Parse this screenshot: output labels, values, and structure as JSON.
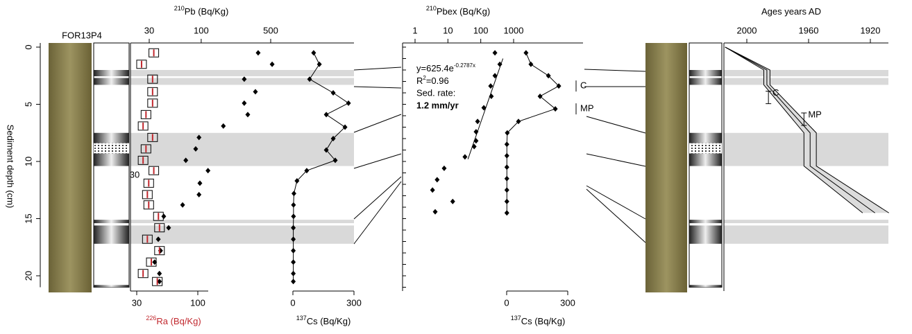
{
  "core_name": "FOR13P4",
  "depth_axis": {
    "label": "Sediment depth (cm)",
    "ylim": [
      0,
      21
    ],
    "yticks": [
      0,
      5,
      10,
      15,
      20
    ]
  },
  "event_layers": [
    [
      2,
      2.55
    ],
    [
      2.7,
      3.3
    ],
    [
      7.5,
      10.4
    ],
    [
      15.1,
      15.4
    ],
    [
      15.6,
      17.2
    ]
  ],
  "chart_data": [
    {
      "type": "scatter",
      "xscale": "log",
      "x_label_sup": "210",
      "x_label": "Pb (Bq/Kg)",
      "xlim": [
        30,
        500
      ],
      "xticks": [
        30,
        100,
        500
      ],
      "x2_label_sup": "226",
      "x2_label": "Ra (Bq/Kg)",
      "x2lim": [
        30,
        100
      ],
      "x2ticks": [
        30,
        100
      ],
      "annotation": "30",
      "series": [
        {
          "color": "#000000",
          "depths": [
            0.5,
            1.5,
            2.8,
            3.9,
            4.9,
            5.9,
            6.9,
            7.9,
            8.9,
            9.9,
            10.8,
            11.9,
            12.9,
            13.8,
            14.8,
            15.8,
            16.8,
            17.8,
            18.8,
            19.8,
            20.5
          ],
          "values": [
            374,
            517,
            271,
            351,
            271,
            294,
            167,
            95,
            88,
            70,
            117,
            97,
            95,
            65,
            42,
            47,
            37,
            39,
            34,
            38,
            38
          ]
        },
        {
          "axis": "x2",
          "color": "#c1272d",
          "depths": [
            0.5,
            1.5,
            2.8,
            3.9,
            4.9,
            5.9,
            6.9,
            7.9,
            8.9,
            9.9,
            10.8,
            11.9,
            12.9,
            13.8,
            14.8,
            15.8,
            16.8,
            17.8,
            18.8,
            19.8,
            20.5
          ],
          "values": [
            42,
            33,
            41,
            41,
            41,
            36,
            34,
            41,
            36,
            34,
            42,
            38,
            37,
            38,
            46,
            47,
            37,
            47,
            40,
            34,
            45
          ]
        }
      ]
    },
    {
      "type": "line",
      "x_label_sup": "137",
      "x_label": "Cs (Bq/Kg)",
      "xlim": [
        0,
        300
      ],
      "xticks": [
        0,
        300
      ],
      "color": "#000000",
      "depths": [
        0.5,
        1.5,
        2.8,
        4,
        4.9,
        5.9,
        7,
        8,
        9,
        9.9,
        10.8,
        11.7,
        12.8,
        13.8,
        14.8,
        15.8,
        16.8,
        17.8,
        18.8,
        19.8,
        20.5
      ],
      "values": [
        102,
        130,
        82,
        198,
        273,
        164,
        256,
        198,
        164,
        208,
        68,
        20,
        5,
        3,
        3,
        2,
        2,
        2,
        2,
        2,
        2
      ]
    },
    {
      "type": "scatter",
      "xscale": "log",
      "x_label_sup": "210",
      "x_label": "Pbex (Bq/Kg)",
      "xlim": [
        1,
        1000
      ],
      "xticks": [
        1,
        10,
        100,
        1000
      ],
      "fit": {
        "a": 625.4,
        "b": -0.2787,
        "depth_range": [
          1,
          9.8
        ]
      },
      "equation": "y=625.4e",
      "equation_exp": "-0.2787x",
      "r2": [
        "R",
        "2",
        "=0.96"
      ],
      "rate_label": "Sed. rate:",
      "rate": "1.2 mm/yr",
      "series": [
        {
          "color": "#000000",
          "depths": [
            0.5,
            1.5,
            2.5,
            3.4,
            4.3,
            5.3,
            6.5,
            7.4,
            8.2,
            8.7,
            9.6,
            10.6,
            11.6,
            12.5,
            13.5,
            14.4
          ],
          "values": [
            270,
            380,
            270,
            200,
            210,
            124,
            80,
            72,
            72,
            63,
            33,
            7.7,
            4.7,
            3.4,
            14,
            4.1
          ]
        }
      ]
    },
    {
      "type": "line",
      "x_label_sup": "137",
      "x_label": "Cs (Bq/Kg)",
      "xlim": [
        0,
        300
      ],
      "xticks": [
        0,
        300
      ],
      "color": "#000000",
      "depths": [
        0.5,
        1.5,
        2.5,
        3.4,
        4.3,
        5.4,
        6.5,
        7.5,
        8.5,
        9.5,
        10.5,
        11.5,
        12.5,
        13.5,
        14.5
      ],
      "values": [
        95,
        119,
        205,
        256,
        164,
        239,
        58,
        3,
        1,
        1,
        1,
        1,
        1,
        1,
        1
      ],
      "markers": [
        {
          "label": "C",
          "depth": 3.4
        },
        {
          "label": "MP",
          "depth": 5.4
        }
      ]
    },
    {
      "type": "age_model",
      "x_label": "Ages years AD",
      "xlim": [
        2000,
        1920
      ],
      "xticks": [
        2000,
        1960,
        1920
      ],
      "depths": [
        0,
        2,
        3.3,
        7.5,
        10.4,
        14.5
      ],
      "age": [
        2014,
        1987,
        1987,
        1959,
        1959,
        1917
      ],
      "age_min": [
        2014,
        1985,
        1985,
        1955,
        1955,
        1908
      ],
      "age_max": [
        2014,
        1989,
        1989,
        1963,
        1963,
        1925
      ],
      "markers": [
        {
          "label": "C",
          "depth": 4.4,
          "age": 1986
        },
        {
          "label": "MP",
          "depth": 6.3,
          "age": 1963
        }
      ]
    }
  ]
}
